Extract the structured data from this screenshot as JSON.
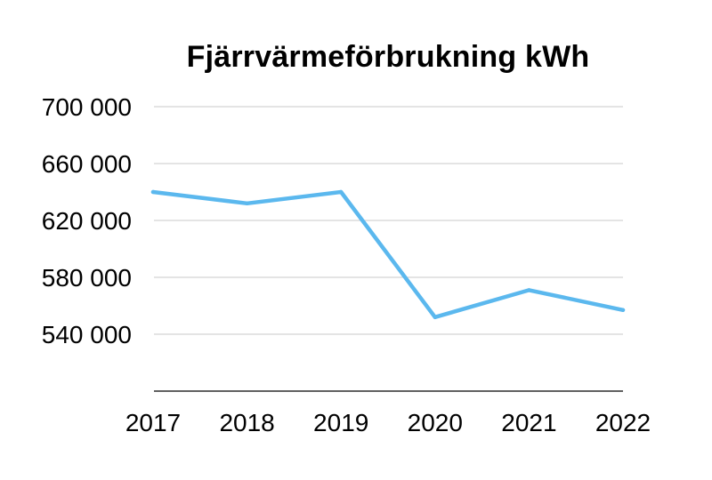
{
  "chart_data": {
    "type": "line",
    "title": "Fjärrvärmeförbrukning kWh",
    "xlabel": "",
    "ylabel": "",
    "categories": [
      "2017",
      "2018",
      "2019",
      "2020",
      "2021",
      "2022"
    ],
    "series": [
      {
        "values": [
          640000,
          632000,
          640000,
          552000,
          571000,
          557000
        ]
      }
    ],
    "ylim": [
      500000,
      700000
    ],
    "yticks": [
      540000,
      580000,
      620000,
      660000,
      700000
    ],
    "ytick_labels": [
      "540 000",
      "580 000",
      "620 000",
      "660 000",
      "700 000"
    ],
    "grid": true,
    "legend": "none",
    "colors": {
      "line": "#5BB8EE",
      "grid": "#c8c8c8",
      "axis": "#000000"
    }
  }
}
